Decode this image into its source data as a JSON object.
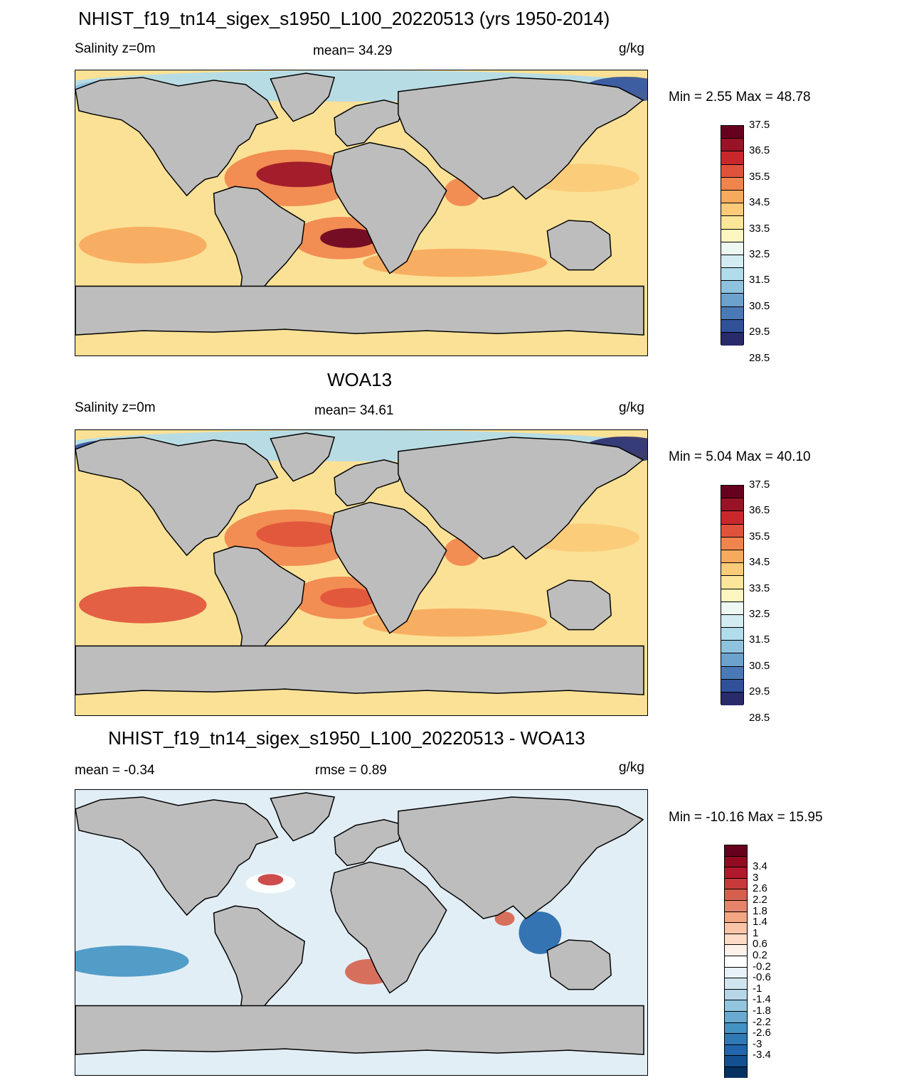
{
  "panels": [
    {
      "title": "NHIST_f19_tn14_sigex_s1950_L100_20220513 (yrs 1950-2014)",
      "left": "Salinity z=0m",
      "center": "mean=  34.29",
      "units": "g/kg",
      "minmax": "Min =   2.55 Max =  48.78",
      "kind": "model"
    },
    {
      "title": "WOA13",
      "left": "Salinity z=0m",
      "center": "mean=  34.61",
      "units": "g/kg",
      "minmax": "Min =   5.04 Max =  40.10",
      "kind": "obs"
    },
    {
      "title": "NHIST_f19_tn14_sigex_s1950_L100_20220513 - WOA13",
      "left": "mean =  -0.34",
      "center": "rmse =   0.89",
      "units": "g/kg",
      "minmax": "Min = -10.16 Max =  15.95",
      "kind": "diff"
    }
  ],
  "colorbar_abs": {
    "labels": [
      "37.5",
      "36.5",
      "35.5",
      "34.5",
      "33.5",
      "32.5",
      "31.5",
      "30.5",
      "29.5",
      "28.5"
    ],
    "colors": [
      "#67001f",
      "#9a1226",
      "#c8282c",
      "#e0523b",
      "#f1844b",
      "#f7a95c",
      "#fbcb78",
      "#fde59a",
      "#fef6c0",
      "#eef8f2",
      "#d2ecf2",
      "#b0dcec",
      "#8ec3de",
      "#6ca2cb",
      "#4a7ab6",
      "#30509a",
      "#282a6a"
    ]
  },
  "colorbar_diff": {
    "labels": [
      "3.4",
      "3",
      "2.6",
      "2.2",
      "1.8",
      "1.4",
      "1",
      "0.6",
      "0.2",
      "-0.2",
      "-0.6",
      "-1",
      "-1.4",
      "-1.8",
      "-2.2",
      "-2.6",
      "-3",
      "-3.4"
    ],
    "colors": [
      "#67001f",
      "#920b22",
      "#b2182b",
      "#c83a3a",
      "#d6604d",
      "#e6836b",
      "#f4a582",
      "#f9c4a8",
      "#fddbc7",
      "#fff1ea",
      "#ffffff",
      "#e8f1f7",
      "#d1e5f0",
      "#b6d6e8",
      "#92c5de",
      "#6aa9d0",
      "#4393c3",
      "#2f79b5",
      "#2166ac",
      "#13508f",
      "#053061"
    ]
  },
  "land_color": "#bdbdbd"
}
